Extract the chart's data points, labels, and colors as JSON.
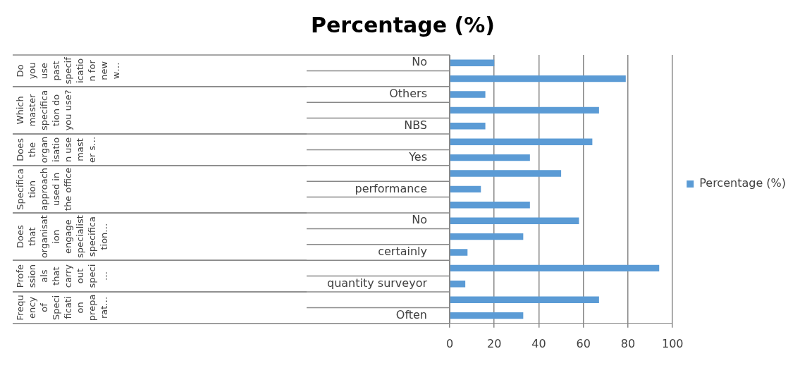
{
  "chart_data": {
    "type": "bar",
    "orientation": "horizontal",
    "title": "Percentage (%)",
    "categories": [
      "No",
      null,
      "Others",
      null,
      "NBS",
      null,
      "Yes",
      null,
      "performance",
      null,
      "No",
      null,
      "certainly",
      null,
      "quantity surveyor",
      null,
      "Often"
    ],
    "series": [
      {
        "name": "Percentage (%)",
        "color": "#5b9bd5",
        "values": [
          20,
          79,
          16,
          67,
          16,
          64,
          36,
          50,
          14,
          36,
          58,
          33,
          8,
          94,
          7,
          67,
          33
        ]
      }
    ],
    "xlim": [
      0,
      100
    ],
    "xticks": [
      0,
      20,
      40,
      60,
      80,
      100
    ],
    "grid": "x",
    "legend": "right",
    "annotations": [
      "Do you use past specification for new w…",
      "Which master specification do you use?",
      "Does the organisation use master s…",
      "Specification approach used in the office",
      "Does that organisation engage specialist specification…",
      "Professionals that carry out speci…",
      "Frequency of Specification preparat…"
    ]
  }
}
